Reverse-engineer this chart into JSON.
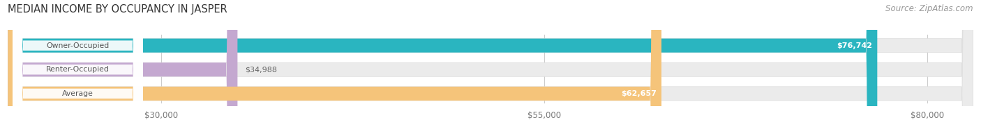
{
  "title": "MEDIAN INCOME BY OCCUPANCY IN JASPER",
  "source": "Source: ZipAtlas.com",
  "categories": [
    "Owner-Occupied",
    "Renter-Occupied",
    "Average"
  ],
  "values": [
    76742,
    34988,
    62657
  ],
  "bar_colors": [
    "#2ab5c0",
    "#c4a8d0",
    "#f5c47a"
  ],
  "bar_bg_colors": [
    "#ebebeb",
    "#ebebeb",
    "#ebebeb"
  ],
  "value_labels": [
    "$76,742",
    "$34,988",
    "$62,657"
  ],
  "xlim": [
    20000,
    83000
  ],
  "xticks": [
    30000,
    55000,
    80000
  ],
  "xtick_labels": [
    "$30,000",
    "$55,000",
    "$80,000"
  ],
  "label_color": "#777777",
  "title_fontsize": 10.5,
  "source_fontsize": 8.5,
  "bar_height": 0.58,
  "background_color": "#ffffff",
  "cat_label_color": "#555555",
  "value_label_inside_color": "#ffffff",
  "value_label_outside_color": "#666666"
}
